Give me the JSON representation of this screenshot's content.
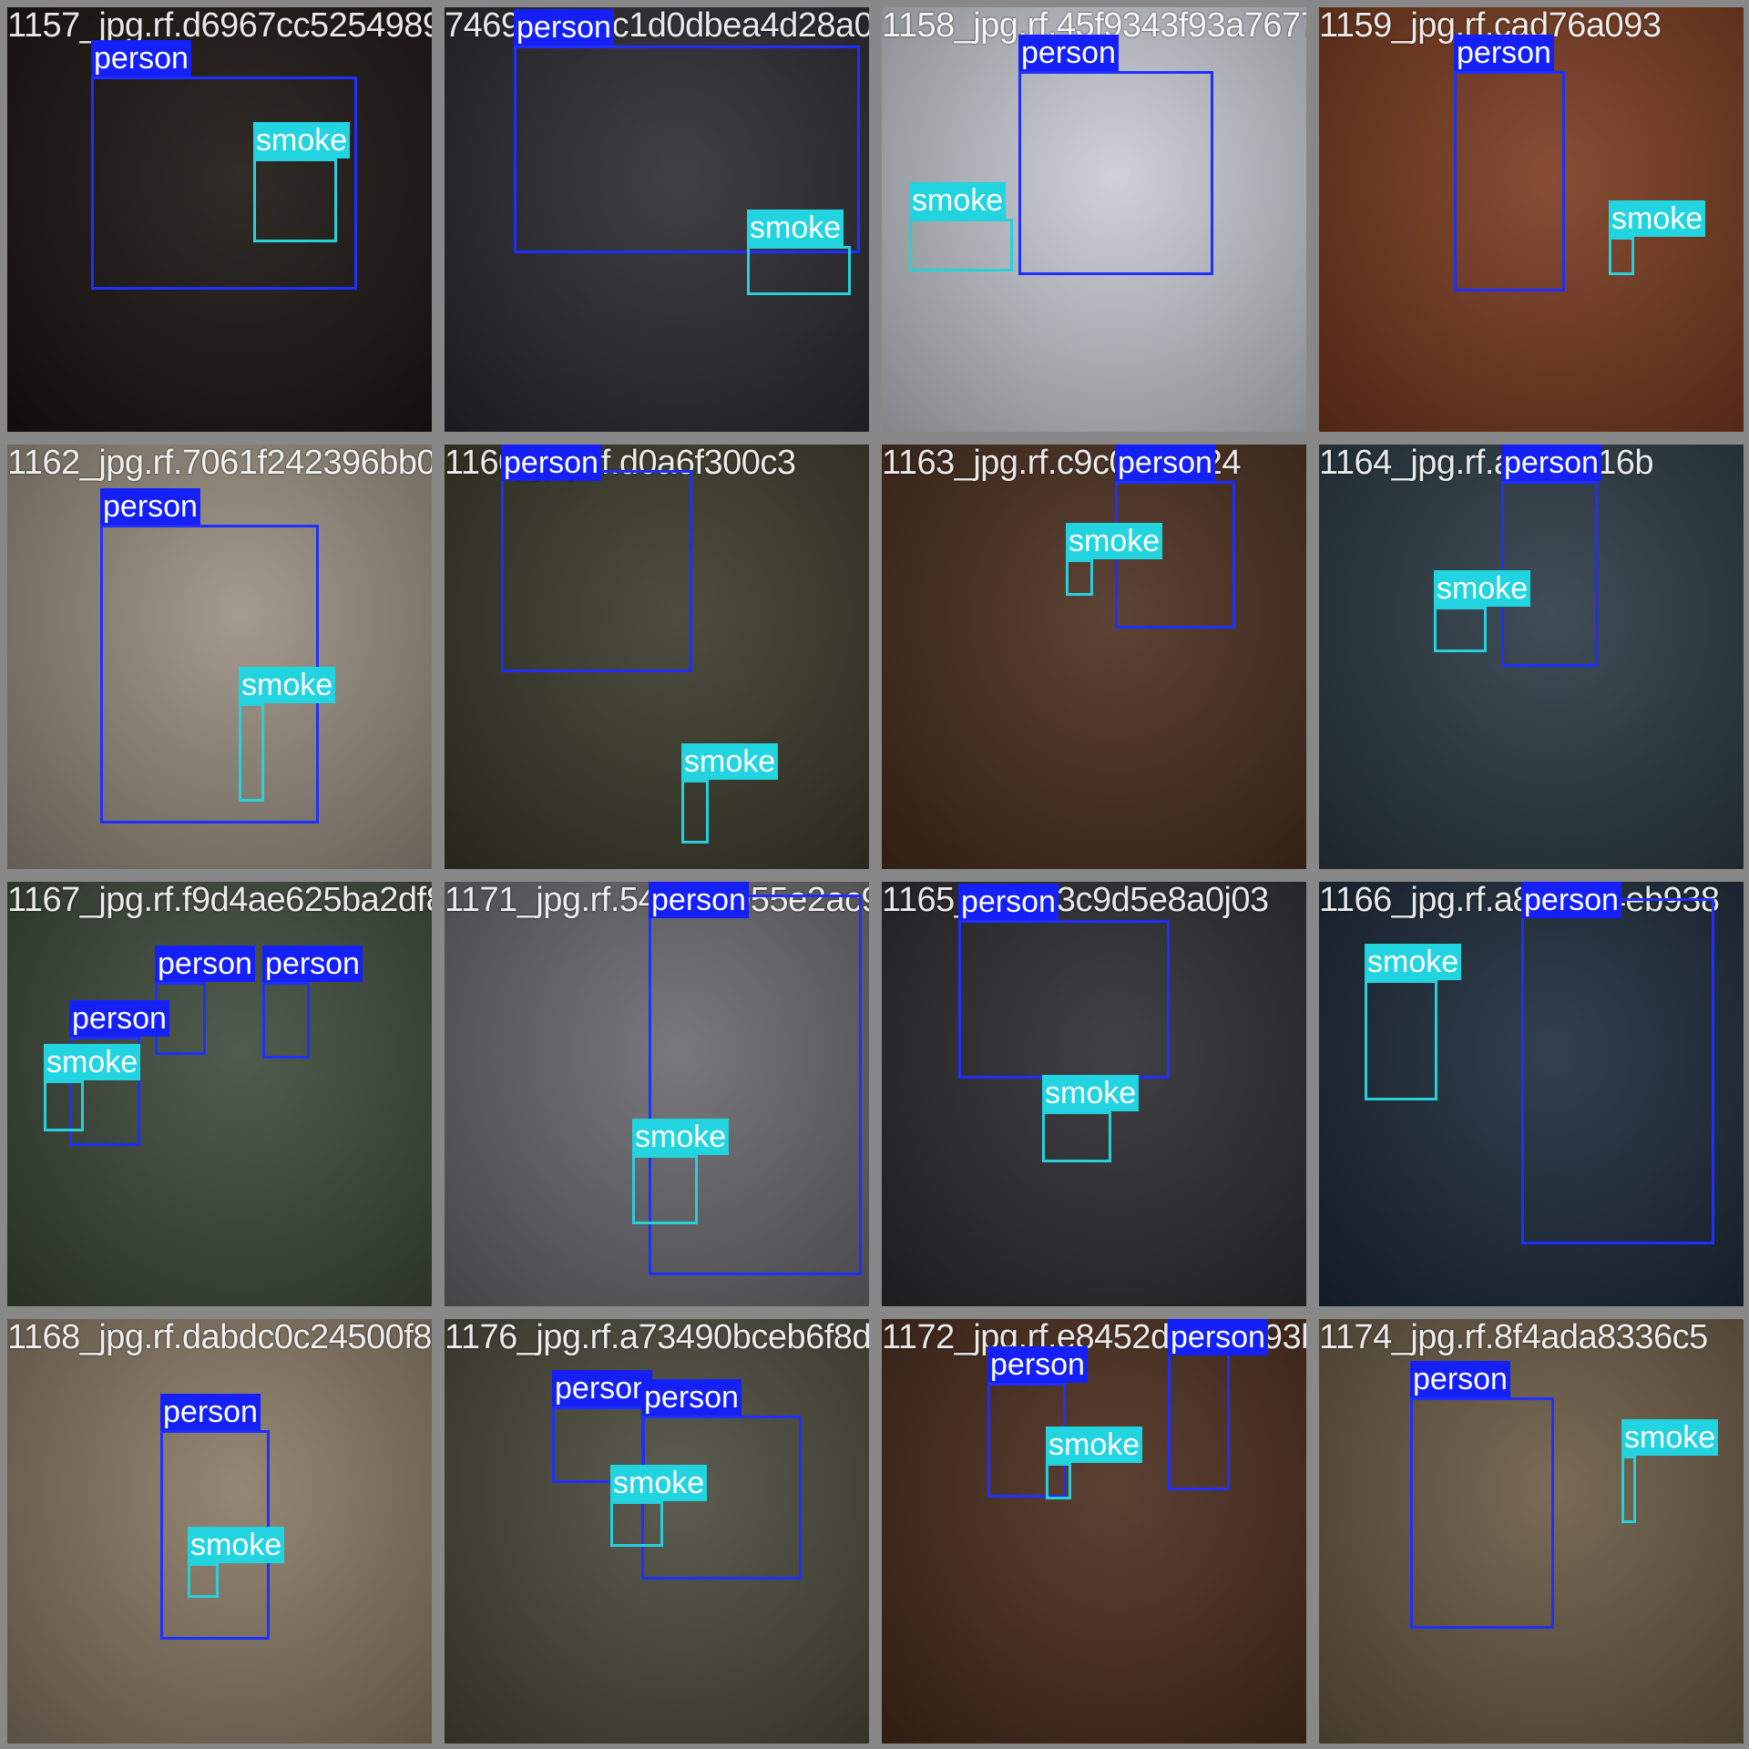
{
  "colors": {
    "person_box": "#1f2fff",
    "smoke_box": "#26d0dd",
    "grid_gap": "#888888"
  },
  "tiles": [
    {
      "filename": "1157_jpg.rf.d6967cc5254989f749",
      "tone": "#1a1410",
      "labels": [
        "person",
        "smoke"
      ]
    },
    {
      "filename": "7469_2c66c1d0dbea4d28a093",
      "tone": "#2a2a30",
      "labels": [
        "person",
        "smoke"
      ]
    },
    {
      "filename": "1158_jpg.rf.45f9343f93a767713396",
      "tone": "#c9cdd4",
      "labels": [
        "person",
        "smoke"
      ]
    },
    {
      "filename": "1159_jpg.rf.cad76a093",
      "tone": "#7a3a1e",
      "labels": [
        "person",
        "smoke"
      ]
    },
    {
      "filename": "1162_jpg.rf.7061f242396bb06e1",
      "tone": "#9a8f80",
      "labels": [
        "person",
        "smoke"
      ]
    },
    {
      "filename": "1160_jpg.rf.d0a6f300c3",
      "tone": "#3a3a2a",
      "labels": [
        "person",
        "smoke"
      ]
    },
    {
      "filename": "1163_jpg.rf.c9c00e0524",
      "tone": "#4a2e1e",
      "labels": [
        "person",
        "smoke"
      ]
    },
    {
      "filename": "1164_jpg.rf.a92f1916b",
      "tone": "#2a3a44",
      "labels": [
        "person",
        "smoke"
      ]
    },
    {
      "filename": "1167_jpg.rf.f9d4ae625ba2df8af71e39",
      "tone": "#3e4a3a",
      "labels": [
        "person",
        "person",
        "person",
        "smoke"
      ]
    },
    {
      "filename": "1171_jpg.rf.54fe9fb055e2ac9a885",
      "tone": "#6a6a6e",
      "labels": [
        "person",
        "smoke"
      ]
    },
    {
      "filename": "1165_jpg.rf.3c9d5e8a0j03",
      "tone": "#2c2c30",
      "labels": [
        "person",
        "smoke"
      ]
    },
    {
      "filename": "1166_jpg.rf.a8abd44eb938",
      "tone": "#1c2a3a",
      "labels": [
        "person",
        "smoke"
      ]
    },
    {
      "filename": "1168_jpg.rf.dabdc0c24500f80c76",
      "tone": "#8a7a66",
      "labels": [
        "person",
        "smoke"
      ]
    },
    {
      "filename": "1176_jpg.rf.a73490bceb6f8d712059",
      "tone": "#4a4a3c",
      "labels": [
        "person",
        "person",
        "smoke"
      ]
    },
    {
      "filename": "1172_jpg.rf.e8452d1451093b6",
      "tone": "#4a2c1c",
      "labels": [
        "person",
        "person",
        "smoke"
      ]
    },
    {
      "filename": "1174_jpg.rf.8f4ada8336c5",
      "tone": "#6a5a44",
      "labels": [
        "person",
        "smoke"
      ]
    }
  ]
}
